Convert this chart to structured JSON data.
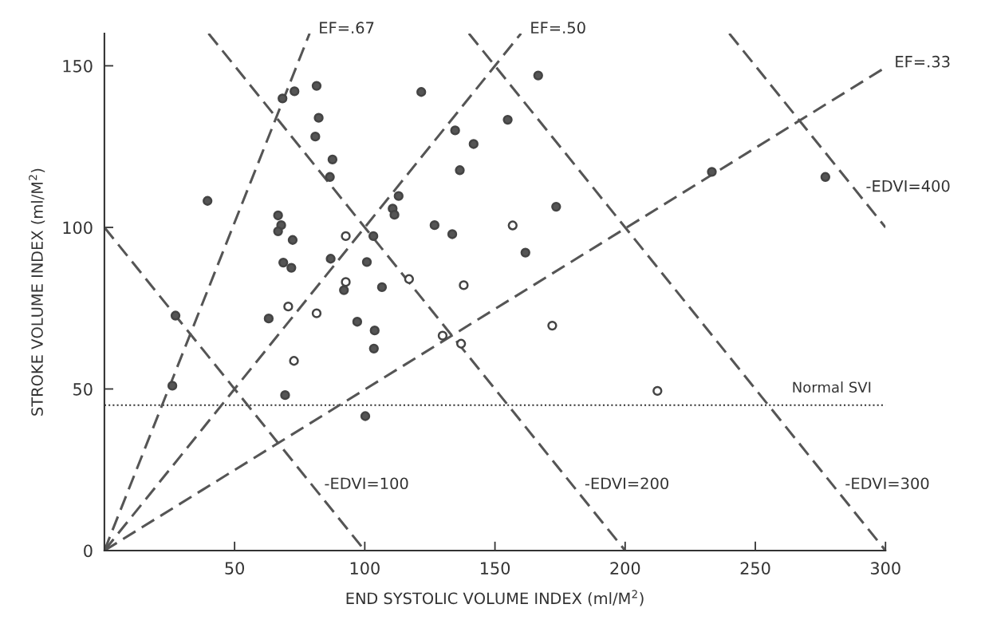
{
  "chart_data": {
    "type": "scatter",
    "xlabel": "END SYSTOLIC VOLUME INDEX (ml/M$^{2}$)",
    "ylabel": "STROKE VOLUME INDEX (ml/M$^{2}$)",
    "xlim": [
      0,
      300
    ],
    "ylim": [
      0,
      160
    ],
    "xticks": [
      50,
      100,
      150,
      200,
      250,
      300
    ],
    "yticks": [
      0,
      50,
      100,
      150
    ],
    "grid": false,
    "legend": false,
    "marker": "circle",
    "series": [
      {
        "color": "#555555",
        "x": [
          81.5,
          73.0,
          68.4,
          82.3,
          81.0,
          87.6,
          86.6,
          121.7,
          166.6,
          154.9,
          134.7,
          141.8,
          136.5,
          113.0,
          110.7,
          111.4,
          173.5,
          66.7,
          67.9,
          66.7,
          72.3,
          103.3,
          126.8,
          133.6,
          161.7,
          68.7,
          71.8,
          86.9,
          100.8,
          92.0,
          106.6,
          63.1,
          97.1,
          103.8,
          103.5,
          69.4,
          100.2,
          27.3,
          26.1,
          39.6,
          233.3,
          276.9
        ],
        "values": [
          143.8,
          142.1,
          139.9,
          133.9,
          128.1,
          121.0,
          115.6,
          141.9,
          147.0,
          133.3,
          130.0,
          125.8,
          117.7,
          109.7,
          105.8,
          103.9,
          106.4,
          103.7,
          100.7,
          98.8,
          96.1,
          97.3,
          100.7,
          97.9,
          92.2,
          89.1,
          87.5,
          90.3,
          89.3,
          80.6,
          81.5,
          71.8,
          70.8,
          68.1,
          62.5,
          48.1,
          41.6,
          72.7,
          51.0,
          108.2,
          117.2,
          115.6
        ]
      },
      {
        "color": "#ffffff",
        "x": [
          92.7,
          156.8,
          92.7,
          117.0,
          138.0,
          70.6,
          81.5,
          72.8,
          129.9,
          137.0,
          172.0,
          212.4
        ],
        "values": [
          97.3,
          100.6,
          83.1,
          84.0,
          82.1,
          75.5,
          73.4,
          58.7,
          66.5,
          64.0,
          69.6,
          49.4
        ]
      },
      {
        "type": "line",
        "marker": "none",
        "color": "#555555",
        "line_style": "dashed",
        "x": [
          0,
          78.8
        ],
        "values": [
          0,
          160
        ]
      },
      {
        "type": "line",
        "marker": "none",
        "color": "#555555",
        "line_style": "dashed",
        "x": [
          0,
          160
        ],
        "values": [
          0,
          160
        ]
      },
      {
        "type": "line",
        "marker": "none",
        "color": "#555555",
        "line_style": "dashed",
        "x": [
          0,
          300
        ],
        "values": [
          0,
          149.5
        ]
      },
      {
        "type": "line",
        "marker": "none",
        "color": "#555555",
        "line_style": "dashed",
        "x": [
          0,
          100
        ],
        "values": [
          100,
          0
        ]
      },
      {
        "type": "line",
        "marker": "none",
        "color": "#555555",
        "line_style": "dashed",
        "x": [
          40,
          200
        ],
        "values": [
          160,
          0
        ]
      },
      {
        "type": "line",
        "marker": "none",
        "color": "#555555",
        "line_style": "dashed",
        "x": [
          140,
          300
        ],
        "values": [
          160,
          0
        ]
      },
      {
        "type": "line",
        "marker": "none",
        "color": "#555555",
        "line_style": "dashed",
        "x": [
          240,
          300
        ],
        "values": [
          160,
          100
        ]
      }
    ],
    "ref_lines": [
      {
        "axis": "y",
        "value": 45,
        "label": "Normal SVI",
        "color": "#333333",
        "line_style": "dotted"
      }
    ],
    "annotations": [
      {
        "text": "EF=.67",
        "x": 78.8,
        "y": 160
      },
      {
        "text": "EF=.50",
        "x": 160,
        "y": 160
      },
      {
        "text": "EF=.33",
        "x": 300,
        "y": 149.5
      },
      {
        "text": "-EDVI=400",
        "x": 289,
        "y": 111
      },
      {
        "text": "-EDVI=100",
        "x": 81,
        "y": 19
      },
      {
        "text": "-EDVI=200",
        "x": 181,
        "y": 19
      },
      {
        "text": "-EDVI=300",
        "x": 281,
        "y": 19
      }
    ]
  }
}
